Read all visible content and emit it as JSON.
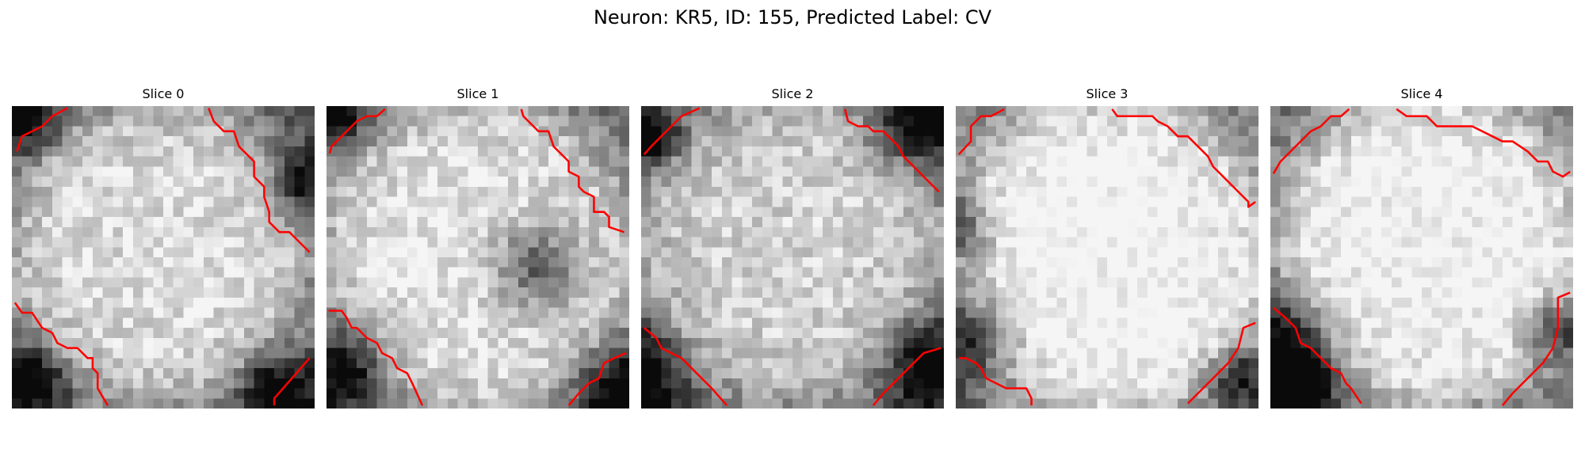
{
  "figure": {
    "title": "Neuron: KR5, ID: 155, Predicted Label: CV",
    "contour_color": "#ff0000",
    "colormap": "gray",
    "panels": [
      {
        "title": "Slice 0"
      },
      {
        "title": "Slice 1"
      },
      {
        "title": "Slice 2"
      },
      {
        "title": "Slice 3"
      },
      {
        "title": "Slice 4"
      }
    ]
  }
}
